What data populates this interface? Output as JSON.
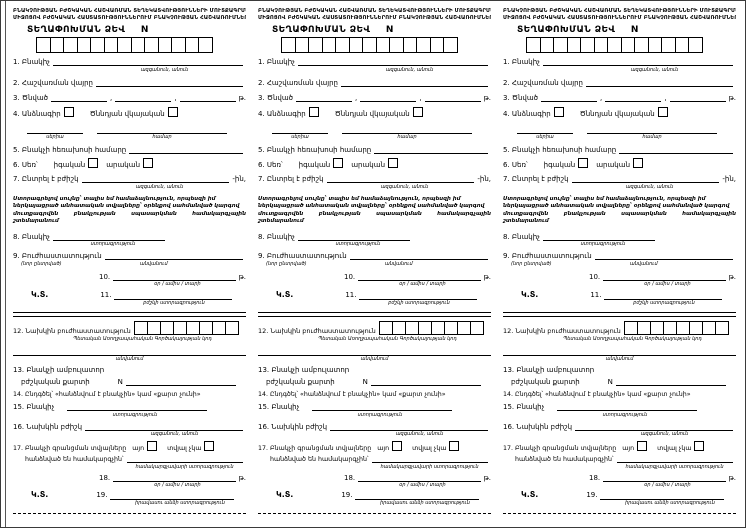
{
  "colors": {
    "ink": "#000000",
    "paper": "#ffffff"
  },
  "form": {
    "header_line1": "ԲՆԱԿՉՈՒԹՅԱՆ ԲԺՇԿԱԿԱՆ ՀԱՇՎԱՌՄԱՆ ՏԵՂԵԿԱՏՎՈՒԹՅՈՒՆՆԵՐԻ ՄՈՒՏՔԱԳՐՄԱՆ",
    "header_line2": "ՄԻՋՈՑՈՎ ԲԺՇԿԱԿԱՆ ՀԱՍՏԱՏՈՒԹՅՈՒՆՆԵՐՈՒՄ ԲՆԱԿՉՈՒԹՅԱՆ ՀԱՇՎԱՌՈՒՄՆԵՐ",
    "title": "ՏԵՂԱՓՈԽՄԱՆ ՁԵՎ",
    "title_no": "N",
    "title_box_count": 13,
    "f1": "1. Բնակիչ",
    "f1_sub": "ազգանուն, անուն",
    "f2": "2. Հաշվառման վայրը",
    "f3": "3. Ծնված",
    "f3_year": "թ.",
    "f4_opt1": "4. Անձնագիր",
    "f4_opt2": "Ծննդյան վկայական",
    "f4_sub1": "սերիա",
    "f4_sub2": "համար",
    "f5": "5. Բնակչի հեռախոսի համարը",
    "f6": "6. Սեռ՝",
    "f6_opt1": "իգական",
    "f6_opt2": "արական",
    "f7": "7. Ընտրել է բժիշկ",
    "f7_suffix": "-ին,",
    "f7_sub": "ազգանուն, անուն",
    "notice_line1": "Ստորագրելով սույնը՝ տալիս եմ համաձայնություն, որպեսզի իմ",
    "notice_line2": "ներկայացրած անհատական տվյալները՝ օրենքով սահմանված կարգով",
    "notice_line3": "մուտքագրվեն բնակչության սպասարկման համակարգչային շտեմարանում",
    "f8": "8. Բնակիչ",
    "f8_sub": "ստորագրություն",
    "f9": "9. Բուժհաստատություն",
    "f9_sub_left": "(նոր ընտրված)",
    "f9_sub": "անվանում",
    "f10": "10.",
    "f10_year": "թ.",
    "f10_sub": "օր / ամիս / տարի",
    "seal": "Կ.Տ.",
    "f11": "11.",
    "f11_sub": "բժշկի ստորագրություն",
    "f12": "12. Նախկին բուժհաստատություն",
    "f12_box_count": 8,
    "f12_sub1": "Պետական Առողջապահական Գործակալության կոդ",
    "f12_sub2": "անվանում",
    "f13_line1": "13. Բնակչի ամբուլատոր",
    "f13_line2": "բժշկական քարտի",
    "f13_no": "N",
    "f14": "14. Ընդգծել՝ «հանձնվում է բնակչին» կամ «քարտ չունի»",
    "f15": "15. Բնակիչ",
    "f15_sub": "ստորագրություն",
    "f16": "16. Նախկին բժիշկ",
    "f16_sub": "ազգանուն, անուն",
    "f17": "17. Բնակչի գրանցման տվյալները",
    "f17_opt1": "այո",
    "f17_opt2": "տվյալ չկա",
    "f17_line2": "հանձնված են համակարգչին՝",
    "f17_sub": "համակարգչավարի ստորագրություն",
    "f18": "18.",
    "f18_year": "թ.",
    "f18_sub": "օր / ամիս / տարի",
    "f19": "19.",
    "f19_sub": "իրավասու անձի ստորագրություն"
  }
}
